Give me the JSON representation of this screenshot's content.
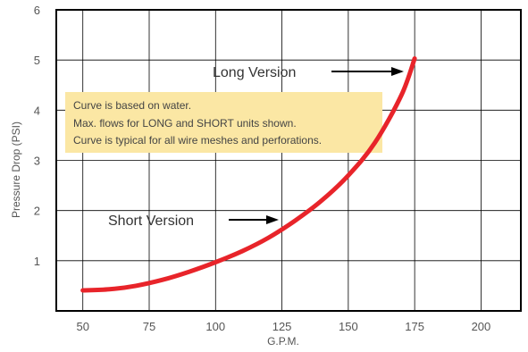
{
  "chart_data": {
    "type": "line",
    "title": "",
    "xlabel": "G.P.M.",
    "ylabel": "Pressure Drop  (PSI)",
    "xlim": [
      40,
      215
    ],
    "ylim": [
      0,
      6
    ],
    "x_ticks": [
      50,
      75,
      100,
      125,
      150,
      175,
      200
    ],
    "y_ticks": [
      1,
      2,
      3,
      4,
      5,
      6
    ],
    "grid": true,
    "series": [
      {
        "color": "#e8242a",
        "x": [
          50,
          60,
          70,
          80,
          90,
          100,
          110,
          120,
          130,
          140,
          150,
          160,
          170,
          175
        ],
        "y": [
          0.41,
          0.43,
          0.5,
          0.62,
          0.78,
          0.97,
          1.19,
          1.46,
          1.8,
          2.2,
          2.7,
          3.35,
          4.3,
          5.03
        ]
      }
    ],
    "annotations": [
      {
        "text": "Long  Version",
        "target_x": 175,
        "target_y": 5.03
      },
      {
        "text": "Short  Version",
        "target_x": 121,
        "target_y": 1.85
      }
    ],
    "note_box": {
      "color": "#fbe7a4",
      "lines": [
        "Curve is based on water.",
        "Max. flows for LONG and SHORT units shown.",
        "Curve is typical for all wire meshes and perforations."
      ]
    }
  }
}
